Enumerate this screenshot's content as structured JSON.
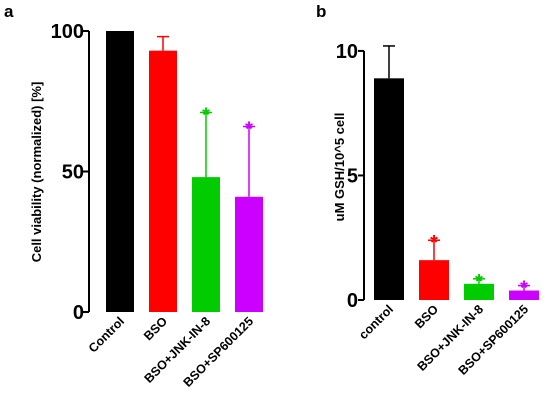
{
  "chart_data": [
    {
      "panel": "a",
      "type": "bar",
      "ylabel": "Cell viability (normalized) [%]",
      "ylim": [
        0,
        100
      ],
      "yticks": [
        0,
        50,
        100
      ],
      "categories": [
        "Control",
        "BSO",
        "BSO+JNK-IN-8",
        "BSO+SP600125"
      ],
      "values": [
        100,
        93,
        48,
        41
      ],
      "error_upper": [
        0,
        5,
        23,
        25
      ],
      "significance": [
        "",
        "",
        "*",
        "*"
      ],
      "colors": [
        "#000000",
        "#ff0000",
        "#00cc00",
        "#cc00ff"
      ]
    },
    {
      "panel": "b",
      "type": "bar",
      "ylabel": "uM GSH/10^5 cell",
      "ylim": [
        0,
        10.8
      ],
      "yticks": [
        0,
        5,
        10
      ],
      "categories": [
        "control",
        "BSO",
        "BSO+JNK-IN-8",
        "BSO+SP600125"
      ],
      "values": [
        8.9,
        1.6,
        0.65,
        0.38
      ],
      "error_upper": [
        1.3,
        0.8,
        0.2,
        0.2
      ],
      "significance": [
        "",
        "*",
        "*",
        "*"
      ],
      "colors": [
        "#000000",
        "#ff0000",
        "#00cc00",
        "#cc00ff"
      ]
    }
  ]
}
